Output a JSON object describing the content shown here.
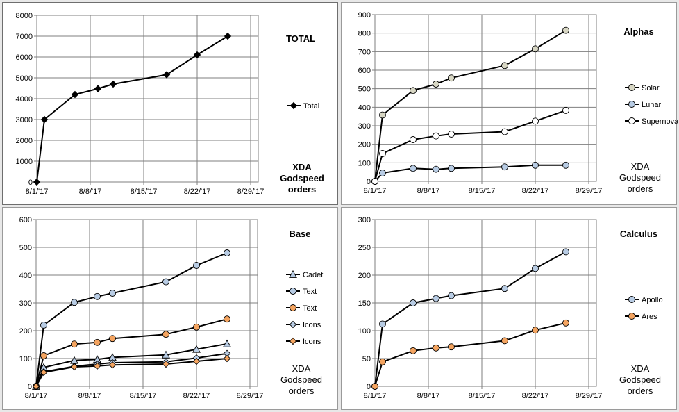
{
  "chart_data": [
    {
      "id": "total",
      "type": "line",
      "title": "TOTAL",
      "x_type": "date",
      "xlim": [
        "2017-08-01",
        "2017-08-30"
      ],
      "x_ticks": [
        "8/1/'17",
        "8/8/'17",
        "8/15/'17",
        "8/22/'17",
        "8/29/'17"
      ],
      "ylim": [
        0,
        8000
      ],
      "y_ticks": [
        "0",
        "1000",
        "2000",
        "3000",
        "4000",
        "5000",
        "6000",
        "7000",
        "8000"
      ],
      "grid": true,
      "legend_position": "right",
      "annotation": [
        "XDA",
        "Godspeed",
        "orders"
      ],
      "annotation_bold": true,
      "series": [
        {
          "name": "Total",
          "marker": "diamond",
          "color": "#000000",
          "x": [
            "2017-08-01",
            "2017-08-02",
            "2017-08-06",
            "2017-08-09",
            "2017-08-11",
            "2017-08-18",
            "2017-08-22",
            "2017-08-26"
          ],
          "values": [
            0,
            3000,
            4200,
            4480,
            4700,
            5150,
            6100,
            7000
          ]
        }
      ]
    },
    {
      "id": "alphas",
      "type": "line",
      "title": "Alphas",
      "x_type": "date",
      "xlim": [
        "2017-08-01",
        "2017-08-30"
      ],
      "x_ticks": [
        "8/1/'17",
        "8/8/'17",
        "8/15/'17",
        "8/22/'17",
        "8/29/'17"
      ],
      "ylim": [
        0,
        900
      ],
      "y_ticks": [
        "0",
        "100",
        "200",
        "300",
        "400",
        "500",
        "600",
        "700",
        "800",
        "900"
      ],
      "grid": true,
      "legend_position": "right",
      "annotation": [
        "XDA",
        "Godspeed",
        "orders"
      ],
      "annotation_bold": false,
      "series": [
        {
          "name": "Solar",
          "marker": "circle",
          "color": "#d8d7c4",
          "x": [
            "2017-08-01",
            "2017-08-02",
            "2017-08-06",
            "2017-08-09",
            "2017-08-11",
            "2017-08-18",
            "2017-08-22",
            "2017-08-26"
          ],
          "values": [
            0,
            358,
            490,
            525,
            558,
            625,
            715,
            815
          ]
        },
        {
          "name": "Lunar",
          "marker": "circle",
          "color": "#b8cce4",
          "x": [
            "2017-08-01",
            "2017-08-02",
            "2017-08-06",
            "2017-08-09",
            "2017-08-11",
            "2017-08-18",
            "2017-08-22",
            "2017-08-26"
          ],
          "values": [
            0,
            45,
            70,
            65,
            70,
            78,
            87,
            87
          ]
        },
        {
          "name": "Supernova",
          "marker": "circle",
          "color": "#ffffff",
          "x": [
            "2017-08-01",
            "2017-08-02",
            "2017-08-06",
            "2017-08-09",
            "2017-08-11",
            "2017-08-18",
            "2017-08-22",
            "2017-08-26"
          ],
          "values": [
            0,
            150,
            225,
            245,
            255,
            268,
            325,
            383
          ]
        }
      ]
    },
    {
      "id": "base",
      "type": "line",
      "title": "Base",
      "x_type": "date",
      "xlim": [
        "2017-08-01",
        "2017-08-30"
      ],
      "x_ticks": [
        "8/1/'17",
        "8/8/'17",
        "8/15/'17",
        "8/22/'17",
        "8/29/'17"
      ],
      "ylim": [
        0,
        600
      ],
      "y_ticks": [
        "0",
        "100",
        "200",
        "300",
        "400",
        "500",
        "600"
      ],
      "grid": true,
      "legend_position": "right",
      "annotation": [
        "XDA",
        "Godspeed",
        "orders"
      ],
      "annotation_bold": false,
      "series": [
        {
          "name": "Cadet",
          "marker": "triangle",
          "color": "#b8cce4",
          "x": [
            "2017-08-01",
            "2017-08-02",
            "2017-08-06",
            "2017-08-09",
            "2017-08-11",
            "2017-08-18",
            "2017-08-22",
            "2017-08-26"
          ],
          "values": [
            0,
            68,
            93,
            97,
            104,
            113,
            133,
            153
          ]
        },
        {
          "name": "Text",
          "marker": "circle",
          "color": "#b8cce4",
          "x": [
            "2017-08-01",
            "2017-08-02",
            "2017-08-06",
            "2017-08-09",
            "2017-08-11",
            "2017-08-18",
            "2017-08-22",
            "2017-08-26"
          ],
          "values": [
            0,
            220,
            302,
            323,
            335,
            376,
            435,
            480
          ]
        },
        {
          "name": "Text",
          "marker": "circle",
          "color": "#f4a460",
          "x": [
            "2017-08-01",
            "2017-08-02",
            "2017-08-06",
            "2017-08-09",
            "2017-08-11",
            "2017-08-18",
            "2017-08-22",
            "2017-08-26"
          ],
          "values": [
            0,
            110,
            152,
            158,
            172,
            187,
            213,
            242
          ]
        },
        {
          "name": "Icons",
          "marker": "diamond",
          "color": "#b8cce4",
          "x": [
            "2017-08-01",
            "2017-08-02",
            "2017-08-06",
            "2017-08-09",
            "2017-08-11",
            "2017-08-18",
            "2017-08-22",
            "2017-08-26"
          ],
          "values": [
            0,
            52,
            72,
            80,
            85,
            88,
            102,
            118
          ]
        },
        {
          "name": "Icons",
          "marker": "diamond",
          "color": "#f4a460",
          "x": [
            "2017-08-01",
            "2017-08-02",
            "2017-08-06",
            "2017-08-09",
            "2017-08-11",
            "2017-08-18",
            "2017-08-22",
            "2017-08-26"
          ],
          "values": [
            0,
            50,
            70,
            73,
            77,
            80,
            90,
            100
          ]
        }
      ]
    },
    {
      "id": "calculus",
      "type": "line",
      "title": "Calculus",
      "x_type": "date",
      "xlim": [
        "2017-08-01",
        "2017-08-30"
      ],
      "x_ticks": [
        "8/1/'17",
        "8/8/'17",
        "8/15/'17",
        "8/22/'17",
        "8/29/'17"
      ],
      "ylim": [
        0,
        300
      ],
      "y_ticks": [
        "0",
        "50",
        "100",
        "150",
        "200",
        "250",
        "300"
      ],
      "grid": true,
      "legend_position": "right",
      "annotation": [
        "XDA",
        "Godspeed",
        "orders"
      ],
      "annotation_bold": false,
      "series": [
        {
          "name": "Apollo",
          "marker": "circle",
          "color": "#b8cce4",
          "x": [
            "2017-08-01",
            "2017-08-02",
            "2017-08-06",
            "2017-08-09",
            "2017-08-11",
            "2017-08-18",
            "2017-08-22",
            "2017-08-26"
          ],
          "values": [
            0,
            112,
            150,
            158,
            163,
            176,
            212,
            242
          ]
        },
        {
          "name": "Ares",
          "marker": "circle",
          "color": "#f4a460",
          "x": [
            "2017-08-01",
            "2017-08-02",
            "2017-08-06",
            "2017-08-09",
            "2017-08-11",
            "2017-08-18",
            "2017-08-22",
            "2017-08-26"
          ],
          "values": [
            0,
            44,
            64,
            69,
            71,
            82,
            101,
            114
          ]
        }
      ]
    }
  ]
}
